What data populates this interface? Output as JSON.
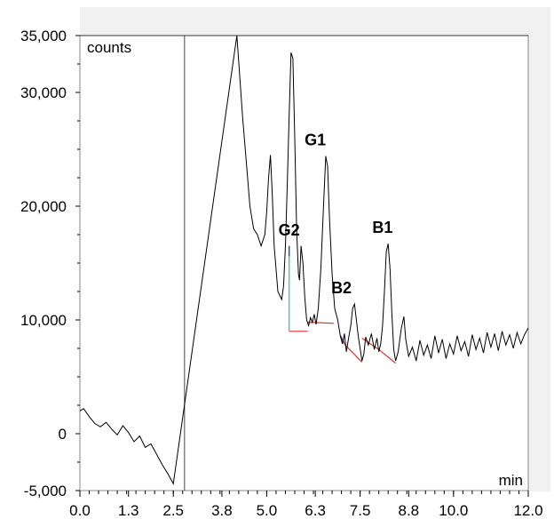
{
  "chart_data": {
    "type": "line",
    "title": "",
    "xlabel": "min",
    "ylabel": "counts",
    "xlim": [
      0,
      12
    ],
    "ylim": [
      -5000,
      35000
    ],
    "grid": false,
    "x_ticks": [
      "0.0",
      "1.3",
      "2.5",
      "3.8",
      "5.0",
      "6.3",
      "7.5",
      "8.8",
      "10.0",
      "12.0"
    ],
    "y_ticks": [
      "35,000",
      "30,000",
      "20,000",
      "10,000",
      "0",
      "-5,000"
    ],
    "injection_marker_x": 2.8,
    "peaks": [
      {
        "label": "G2",
        "x": 5.6,
        "y": 16500
      },
      {
        "label": "G1",
        "x": 6.3,
        "y": 24400
      },
      {
        "label": "B2",
        "x": 7.0,
        "y": 11400
      },
      {
        "label": "B1",
        "x": 8.1,
        "y": 16700
      }
    ],
    "series": [
      {
        "color": "#000000",
        "points": [
          [
            0.0,
            2000
          ],
          [
            0.1,
            2200
          ],
          [
            0.25,
            1500
          ],
          [
            0.4,
            900
          ],
          [
            0.55,
            600
          ],
          [
            0.7,
            1000
          ],
          [
            0.85,
            400
          ],
          [
            1.0,
            -100
          ],
          [
            1.15,
            700
          ],
          [
            1.3,
            100
          ],
          [
            1.45,
            -700
          ],
          [
            1.6,
            -200
          ],
          [
            1.75,
            -1200
          ],
          [
            1.9,
            -900
          ],
          [
            2.05,
            -1800
          ],
          [
            2.2,
            -2700
          ],
          [
            2.35,
            -3500
          ],
          [
            2.5,
            -4400
          ],
          [
            4.2,
            35000
          ],
          [
            4.35,
            28000
          ],
          [
            4.45,
            24000
          ],
          [
            4.55,
            20000
          ],
          [
            4.65,
            18000
          ],
          [
            4.75,
            17500
          ],
          [
            4.85,
            16500
          ],
          [
            4.95,
            17500
          ],
          [
            5.0,
            19500
          ],
          [
            5.05,
            22500
          ],
          [
            5.1,
            24500
          ],
          [
            5.15,
            21000
          ],
          [
            5.2,
            16500
          ],
          [
            5.3,
            12500
          ],
          [
            5.4,
            11800
          ],
          [
            5.45,
            13000
          ],
          [
            5.5,
            16500
          ],
          [
            5.55,
            22000
          ],
          [
            5.6,
            28000
          ],
          [
            5.65,
            33500
          ],
          [
            5.7,
            33000
          ],
          [
            5.75,
            26000
          ],
          [
            5.8,
            18000
          ],
          [
            5.85,
            14000
          ],
          [
            5.88,
            13500
          ],
          [
            5.92,
            16500
          ],
          [
            5.97,
            15000
          ],
          [
            6.02,
            12000
          ],
          [
            6.07,
            10000
          ],
          [
            6.12,
            9500
          ],
          [
            6.17,
            10200
          ],
          [
            6.22,
            9800
          ],
          [
            6.27,
            10500
          ],
          [
            6.32,
            9600
          ],
          [
            6.38,
            11000
          ],
          [
            6.45,
            14500
          ],
          [
            6.52,
            20000
          ],
          [
            6.58,
            24400
          ],
          [
            6.63,
            23500
          ],
          [
            6.68,
            19000
          ],
          [
            6.75,
            14000
          ],
          [
            6.82,
            11000
          ],
          [
            6.9,
            10000
          ],
          [
            6.97,
            8600
          ],
          [
            7.03,
            7900
          ],
          [
            7.08,
            8800
          ],
          [
            7.13,
            7200
          ],
          [
            7.18,
            8200
          ],
          [
            7.25,
            9500
          ],
          [
            7.3,
            11000
          ],
          [
            7.35,
            11400
          ],
          [
            7.4,
            10000
          ],
          [
            7.45,
            8600
          ],
          [
            7.5,
            7500
          ],
          [
            7.55,
            6400
          ],
          [
            7.6,
            7000
          ],
          [
            7.65,
            8500
          ],
          [
            7.72,
            7800
          ],
          [
            7.8,
            8800
          ],
          [
            7.88,
            7400
          ],
          [
            7.95,
            8400
          ],
          [
            8.0,
            7200
          ],
          [
            8.05,
            7900
          ],
          [
            8.1,
            9500
          ],
          [
            8.15,
            12500
          ],
          [
            8.2,
            16000
          ],
          [
            8.25,
            16700
          ],
          [
            8.3,
            14500
          ],
          [
            8.35,
            10500
          ],
          [
            8.4,
            7400
          ],
          [
            8.45,
            6400
          ],
          [
            8.52,
            7200
          ],
          [
            8.6,
            9200
          ],
          [
            8.67,
            10300
          ],
          [
            8.72,
            8300
          ],
          [
            8.8,
            6800
          ],
          [
            8.9,
            7600
          ],
          [
            9.0,
            6400
          ],
          [
            9.1,
            8200
          ],
          [
            9.2,
            6900
          ],
          [
            9.3,
            7800
          ],
          [
            9.4,
            6600
          ],
          [
            9.5,
            8600
          ],
          [
            9.6,
            7100
          ],
          [
            9.7,
            8300
          ],
          [
            9.8,
            6600
          ],
          [
            9.9,
            7900
          ],
          [
            10.0,
            7000
          ],
          [
            10.1,
            8600
          ],
          [
            10.2,
            7300
          ],
          [
            10.3,
            8100
          ],
          [
            10.4,
            6800
          ],
          [
            10.5,
            8700
          ],
          [
            10.6,
            7400
          ],
          [
            10.7,
            8400
          ],
          [
            10.8,
            7100
          ],
          [
            10.9,
            8900
          ],
          [
            11.0,
            7600
          ],
          [
            11.1,
            8800
          ],
          [
            11.2,
            7300
          ],
          [
            11.3,
            9000
          ],
          [
            11.4,
            7800
          ],
          [
            11.5,
            8700
          ],
          [
            11.6,
            7500
          ],
          [
            11.7,
            8900
          ],
          [
            11.8,
            7900
          ],
          [
            11.9,
            8700
          ],
          [
            12.0,
            9300
          ]
        ]
      }
    ],
    "baselines": [
      {
        "color": "#00c8d8",
        "points": [
          [
            5.6,
            16500
          ],
          [
            5.6,
            9000
          ]
        ]
      },
      {
        "color": "#e03030",
        "points": [
          [
            5.6,
            9000
          ],
          [
            6.1,
            9000
          ]
        ]
      },
      {
        "color": "#e03030",
        "points": [
          [
            6.1,
            9800
          ],
          [
            6.8,
            9700
          ]
        ]
      },
      {
        "color": "#e03030",
        "points": [
          [
            6.98,
            8600
          ],
          [
            7.1,
            7800
          ],
          [
            7.55,
            6300
          ]
        ]
      },
      {
        "color": "#e03030",
        "points": [
          [
            7.55,
            8400
          ],
          [
            8.0,
            7400
          ],
          [
            8.45,
            6200
          ]
        ]
      },
      {
        "color": "#2030b0",
        "points": [
          [
            5.6,
            16500
          ],
          [
            5.6,
            15600
          ]
        ]
      },
      {
        "color": "#2030b0",
        "points": [
          [
            6.98,
            8600
          ],
          [
            7.03,
            7900
          ]
        ]
      }
    ]
  }
}
